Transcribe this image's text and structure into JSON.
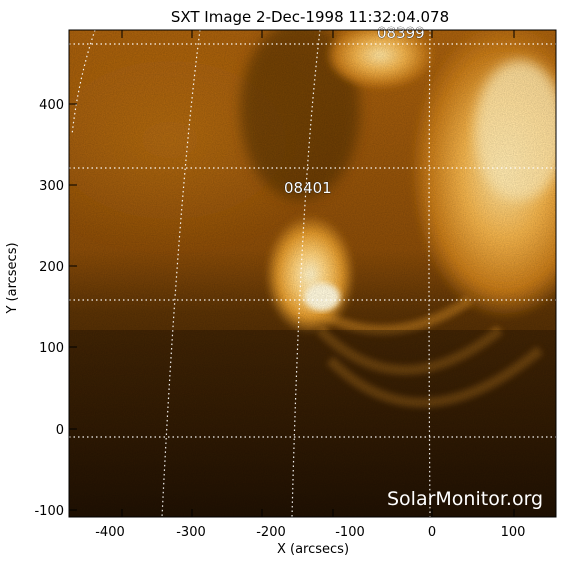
{
  "title": "SXT Image   2-Dec-1998 11:32:04.078",
  "watermark": "SolarMonitor.org",
  "active_regions": [
    "08399",
    "08401"
  ],
  "axes": {
    "x_label": "X (arcsecs)",
    "y_label": "Y (arcsecs)",
    "x_ticks": [
      "-400",
      "-300",
      "-200",
      "-100",
      "0",
      "100"
    ],
    "y_ticks": [
      "-100",
      "0",
      "100",
      "200",
      "300",
      "400"
    ]
  },
  "colors": {
    "frame": "#000000",
    "grid": "#ffffff",
    "sun_bright": "#ffe9a8",
    "sun_mid": "#c47a16",
    "sun_dark": "#2a1705"
  }
}
